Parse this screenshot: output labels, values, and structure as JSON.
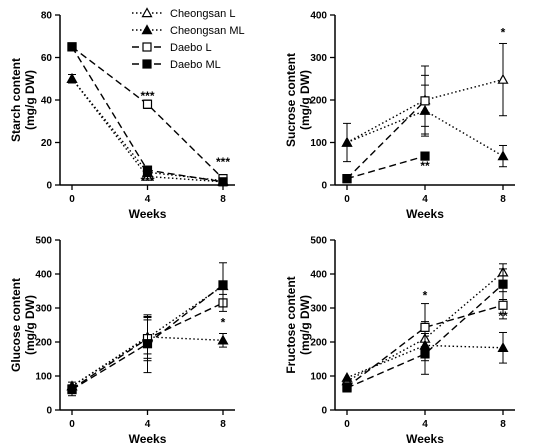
{
  "figure": {
    "legend": {
      "placement": "top-right of first panel",
      "entries": [
        {
          "name": "Cheongsan L",
          "marker": "open-triangle",
          "line": "dotted"
        },
        {
          "name": "Cheongsan ML",
          "marker": "filled-triangle",
          "line": "dotted"
        },
        {
          "name": "Daebo L",
          "marker": "open-square",
          "line": "dashed"
        },
        {
          "name": "Daebo ML",
          "marker": "filled-square",
          "line": "dashed"
        }
      ]
    }
  },
  "chart_data": [
    {
      "type": "line",
      "title": "",
      "ylabel_lines": [
        "Starch content",
        "(mg/g DW)"
      ],
      "xlabel": "Weeks",
      "x": [
        0,
        4,
        8
      ],
      "x_ticks": [
        "0",
        "4",
        "8"
      ],
      "ylim": [
        0,
        80
      ],
      "y_ticks": [
        0,
        20,
        40,
        60,
        80
      ],
      "grid": false,
      "series": [
        {
          "name": "Cheongsan L",
          "values": [
            50,
            4,
            1.5
          ],
          "errors": [
            null,
            null,
            null
          ]
        },
        {
          "name": "Cheongsan ML",
          "values": [
            50,
            6,
            2
          ],
          "errors": [
            2,
            2,
            null
          ]
        },
        {
          "name": "Daebo L",
          "values": [
            65,
            38,
            3
          ],
          "errors": [
            null,
            2,
            null
          ]
        },
        {
          "name": "Daebo ML",
          "values": [
            65,
            7,
            1.5
          ],
          "errors": [
            null,
            null,
            null
          ]
        }
      ],
      "annotations": [
        {
          "text": "***",
          "x": 4,
          "y": 40
        },
        {
          "text": "***",
          "x": 4,
          "y": 0
        },
        {
          "text": "***",
          "x": 8,
          "y": 9
        }
      ]
    },
    {
      "type": "line",
      "title": "",
      "ylabel_lines": [
        "Sucrose content",
        "(mg/g DW)"
      ],
      "xlabel": "Weeks",
      "x": [
        0,
        4,
        8
      ],
      "x_ticks": [
        "0",
        "4",
        "8"
      ],
      "ylim": [
        0,
        400
      ],
      "y_ticks": [
        0,
        100,
        200,
        300,
        400
      ],
      "grid": false,
      "series": [
        {
          "name": "Cheongsan L",
          "values": [
            100,
            200,
            248
          ],
          "errors": [
            45,
            80,
            85
          ]
        },
        {
          "name": "Cheongsan ML",
          "values": [
            100,
            175,
            68
          ],
          "errors": [
            null,
            60,
            25
          ]
        },
        {
          "name": "Daebo L",
          "values": [
            15,
            198,
            null
          ],
          "errors": [
            null,
            60,
            null
          ]
        },
        {
          "name": "Daebo ML",
          "values": [
            15,
            68,
            null
          ],
          "errors": [
            null,
            null,
            null
          ]
        }
      ],
      "annotations": [
        {
          "text": "*",
          "x": 8,
          "y": 350
        },
        {
          "text": "**",
          "x": 4,
          "y": 35
        }
      ]
    },
    {
      "type": "line",
      "title": "",
      "ylabel_lines": [
        "Glucose content",
        "(mg/g DW)"
      ],
      "xlabel": "Weeks",
      "x": [
        0,
        4,
        8
      ],
      "x_ticks": [
        "0",
        "4",
        "8"
      ],
      "ylim": [
        0,
        500
      ],
      "y_ticks": [
        0,
        100,
        200,
        300,
        400,
        500
      ],
      "grid": false,
      "series": [
        {
          "name": "Cheongsan L",
          "values": [
            70,
            212,
            365
          ],
          "errors": [
            null,
            60,
            null
          ]
        },
        {
          "name": "Cheongsan ML",
          "values": [
            70,
            215,
            205
          ],
          "errors": [
            null,
            50,
            20
          ]
        },
        {
          "name": "Daebo L",
          "values": [
            62,
            210,
            315
          ],
          "errors": [
            20,
            65,
            25
          ]
        },
        {
          "name": "Daebo ML",
          "values": [
            60,
            195,
            368
          ],
          "errors": [
            null,
            85,
            65
          ]
        }
      ],
      "annotations": [
        {
          "text": "*",
          "x": 8,
          "y": 245
        }
      ]
    },
    {
      "type": "line",
      "title": "",
      "ylabel_lines": [
        "Fructose content",
        "(mg/g DW)"
      ],
      "xlabel": "Weeks",
      "x": [
        0,
        4,
        8
      ],
      "x_ticks": [
        "0",
        "4",
        "8"
      ],
      "ylim": [
        0,
        500
      ],
      "y_ticks": [
        0,
        100,
        200,
        300,
        400,
        500
      ],
      "grid": false,
      "series": [
        {
          "name": "Cheongsan L",
          "values": [
            85,
            210,
            405
          ],
          "errors": [
            null,
            50,
            25
          ]
        },
        {
          "name": "Cheongsan ML",
          "values": [
            95,
            190,
            183
          ],
          "errors": [
            null,
            45,
            45
          ]
        },
        {
          "name": "Daebo L",
          "values": [
            68,
            243,
            308
          ],
          "errors": [
            null,
            70,
            40
          ]
        },
        {
          "name": "Daebo ML",
          "values": [
            65,
            165,
            370
          ],
          "errors": [
            null,
            60,
            45
          ]
        }
      ],
      "annotations": [
        {
          "text": "*",
          "x": 4,
          "y": 325
        },
        {
          "text": "**",
          "x": 8,
          "y": 265
        }
      ]
    }
  ]
}
